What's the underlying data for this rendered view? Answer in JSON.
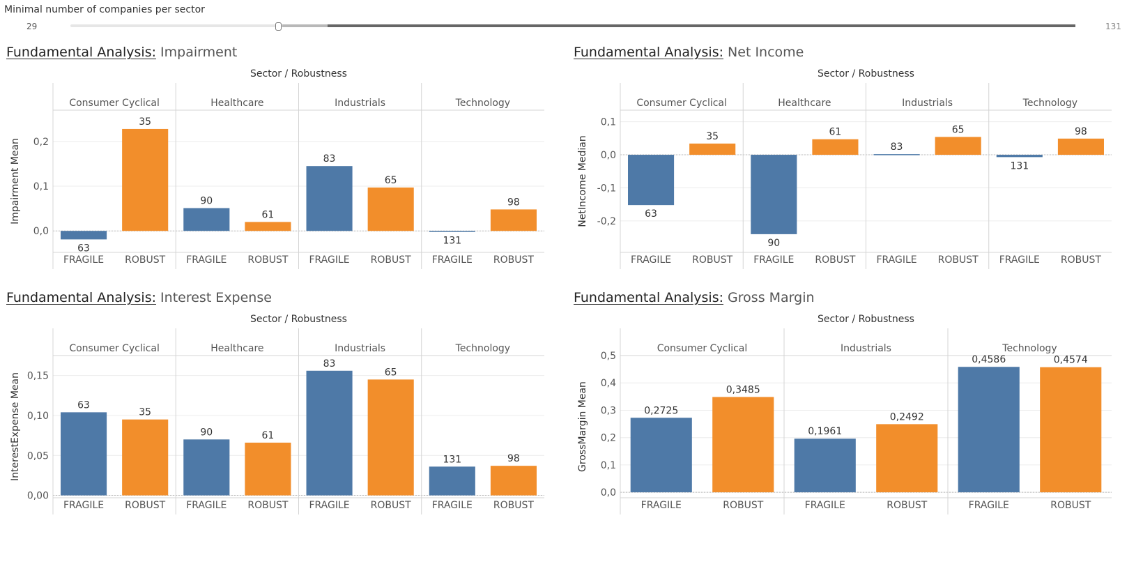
{
  "filter": {
    "title": "Minimal number of companies per sector",
    "min_label": "29",
    "max_label": "131",
    "range": [
      59,
      131
    ]
  },
  "colors": {
    "fragile": "#4e79a7",
    "robust": "#f28e2b"
  },
  "panels": [
    {
      "title_lead": "Fundamental  Analysis:",
      "title_metric": " Impairment"
    },
    {
      "title_lead": "Fundamental  Analysis:",
      "title_metric": " Net Income"
    },
    {
      "title_lead": "Fundamental  Analysis:",
      "title_metric": " Interest Expense"
    },
    {
      "title_lead": "Fundamental  Analysis:",
      "title_metric": " Gross Margin"
    }
  ],
  "chart_data": [
    {
      "type": "bar",
      "title": "Fundamental  Analysis: Impairment",
      "column_header": "Sector / Robustness",
      "ylabel": "Impairment Mean",
      "ylim": [
        -0.048,
        0.27
      ],
      "yticks": [
        0.0,
        0.1,
        0.2
      ],
      "ytick_labels": [
        "0,0",
        "0,1",
        "0,2"
      ],
      "sectors": [
        "Consumer Cyclical",
        "Healthcare",
        "Industrials",
        "Technology"
      ],
      "categories": [
        "FRAGILE",
        "ROBUST"
      ],
      "values": [
        [
          -0.019,
          0.228
        ],
        [
          0.051,
          0.02
        ],
        [
          0.145,
          0.097
        ],
        [
          -0.002,
          0.048
        ]
      ],
      "labels": [
        [
          "63",
          "35"
        ],
        [
          "90",
          "61"
        ],
        [
          "83",
          "65"
        ],
        [
          "131",
          "98"
        ]
      ]
    },
    {
      "type": "bar",
      "title": "Fundamental  Analysis: Net Income",
      "column_header": "Sector / Robustness",
      "ylabel": "NetIncome Median",
      "ylim": [
        -0.295,
        0.135
      ],
      "yticks": [
        0.1,
        0.0,
        -0.1,
        -0.2
      ],
      "ytick_labels": [
        "0,1",
        "0,0",
        "-0,1",
        "-0,2"
      ],
      "sectors": [
        "Consumer Cyclical",
        "Healthcare",
        "Industrials",
        "Technology"
      ],
      "categories": [
        "FRAGILE",
        "ROBUST"
      ],
      "values": [
        [
          -0.152,
          0.034
        ],
        [
          -0.24,
          0.047
        ],
        [
          0.002,
          0.054
        ],
        [
          -0.007,
          0.049
        ]
      ],
      "labels": [
        [
          "63",
          "35"
        ],
        [
          "90",
          "61"
        ],
        [
          "83",
          "65"
        ],
        [
          "131",
          "98"
        ]
      ]
    },
    {
      "type": "bar",
      "title": "Fundamental  Analysis: Interest Expense",
      "column_header": "Sector / Robustness",
      "ylabel": "InterestExpense Mean",
      "ylim": [
        -0.003,
        0.175
      ],
      "yticks": [
        0.0,
        0.05,
        0.1,
        0.15
      ],
      "ytick_labels": [
        "0,00",
        "0,05",
        "0,10",
        "0,15"
      ],
      "sectors": [
        "Consumer Cyclical",
        "Healthcare",
        "Industrials",
        "Technology"
      ],
      "categories": [
        "FRAGILE",
        "ROBUST"
      ],
      "values": [
        [
          0.104,
          0.095
        ],
        [
          0.07,
          0.066
        ],
        [
          0.156,
          0.145
        ],
        [
          0.036,
          0.037
        ]
      ],
      "labels": [
        [
          "63",
          "35"
        ],
        [
          "90",
          "61"
        ],
        [
          "83",
          "65"
        ],
        [
          "131",
          "98"
        ]
      ]
    },
    {
      "type": "bar",
      "title": "Fundamental  Analysis: Gross Margin",
      "column_header": "Sector / Robustness",
      "ylabel": "GrossMargin Mean",
      "ylim": [
        -0.02,
        0.5
      ],
      "yticks": [
        0.0,
        0.1,
        0.2,
        0.3,
        0.4,
        0.5
      ],
      "ytick_labels": [
        "0,0",
        "0,1",
        "0,2",
        "0,3",
        "0,4",
        "0,5"
      ],
      "sectors": [
        "Consumer Cyclical",
        "Industrials",
        "Technology"
      ],
      "categories": [
        "FRAGILE",
        "ROBUST"
      ],
      "values": [
        [
          0.2725,
          0.3485
        ],
        [
          0.1961,
          0.2492
        ],
        [
          0.4586,
          0.4574
        ]
      ],
      "labels": [
        [
          "0,2725",
          "0,3485"
        ],
        [
          "0,1961",
          "0,2492"
        ],
        [
          "0,4586",
          "0,4574"
        ]
      ]
    }
  ]
}
